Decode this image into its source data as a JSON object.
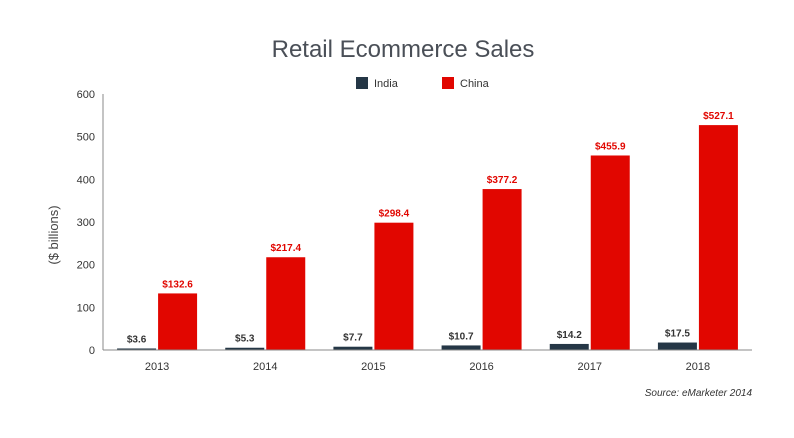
{
  "chart_data": {
    "type": "bar",
    "title": "Retail Ecommerce Sales",
    "ylabel": "($ billions)",
    "xlabel": "",
    "categories": [
      "2013",
      "2014",
      "2015",
      "2016",
      "2017",
      "2018"
    ],
    "series": [
      {
        "name": "India",
        "color": "#253746",
        "values": [
          3.6,
          5.3,
          7.7,
          10.7,
          14.2,
          17.5
        ],
        "labels": [
          "$3.6",
          "$5.3",
          "$7.7",
          "$10.7",
          "$14.2",
          "$17.5"
        ],
        "label_color": "#333333"
      },
      {
        "name": "China",
        "color": "#e10600",
        "values": [
          132.6,
          217.4,
          298.4,
          377.2,
          455.9,
          527.1
        ],
        "labels": [
          "$132.6",
          "$217.4",
          "$298.4",
          "$377.2",
          "$455.9",
          "$527.1"
        ],
        "label_color": "#e10600"
      }
    ],
    "yticks": [
      0,
      100,
      200,
      300,
      400,
      500,
      600
    ],
    "ytick_labels": [
      "0",
      "100",
      "200",
      "300",
      "400",
      "500",
      "600"
    ],
    "ylim": [
      0,
      600
    ],
    "grid": false,
    "legend_position": "top-center",
    "source": "Source: eMarketer 2014"
  }
}
